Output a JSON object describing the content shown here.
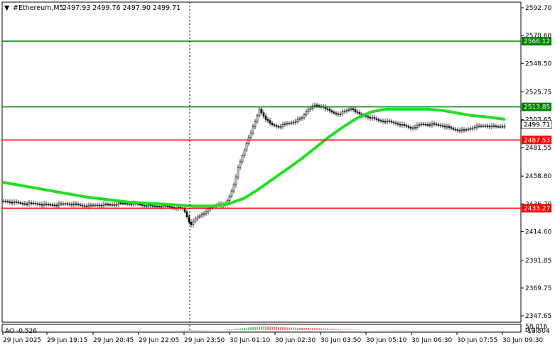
{
  "header": {
    "symbol": "#Ethereum,M5",
    "ohlc": "2497.93 2499.76 2497.90 2499.71"
  },
  "indicator": {
    "label": "AO -0.526",
    "ticks": [
      "58.016",
      "0.00",
      "-13.504"
    ]
  },
  "colors": {
    "ma": "#22dd22",
    "support_line": "#ff0000",
    "resistance_line": "#008000",
    "candle": "#000000",
    "ao_up": "#008000",
    "ao_down": "#cc0000"
  },
  "chart_data": {
    "type": "line",
    "title": "#Ethereum,M5",
    "price_range": [
      2342.6,
      2597.2
    ],
    "y_ticks": [
      "2592.70",
      "2570.60",
      "2548.50",
      "2525.75",
      "2503.65",
      "2481.55",
      "2458.80",
      "2436.70",
      "2414.60",
      "2391.85",
      "2369.75",
      "2347.65"
    ],
    "x_ticks": [
      "29 Jun 2025",
      "29 Jun 19:15",
      "29 Jun 20:45",
      "29 Jun 22:05",
      "29 Jun 23:50",
      "30 Jun 01:10",
      "30 Jun 02:30",
      "30 Jun 03:50",
      "30 Jun 05:10",
      "30 Jun 06:30",
      "30 Jun 07:55",
      "30 Jun 09:30"
    ],
    "levels": [
      {
        "value": 2566.12,
        "label": "2566.12",
        "kind": "resistance"
      },
      {
        "value": 2513.85,
        "label": "2513.85",
        "kind": "resistance"
      },
      {
        "value": 2487.53,
        "label": "2487.53",
        "kind": "support"
      },
      {
        "value": 2433.27,
        "label": "2433.27",
        "kind": "support"
      }
    ],
    "current_price": {
      "value": 2499.71,
      "label": "2499.71"
    },
    "price_series_approx": [
      [
        0,
        2439
      ],
      [
        15,
        2438
      ],
      [
        30,
        2437
      ],
      [
        45,
        2437
      ],
      [
        60,
        2436
      ],
      [
        75,
        2436
      ],
      [
        90,
        2437
      ],
      [
        105,
        2436
      ],
      [
        120,
        2435
      ],
      [
        135,
        2436
      ],
      [
        150,
        2436
      ],
      [
        165,
        2437
      ],
      [
        180,
        2437
      ],
      [
        195,
        2436
      ],
      [
        210,
        2435
      ],
      [
        225,
        2435
      ],
      [
        240,
        2434
      ],
      [
        255,
        2433
      ],
      [
        265,
        2420
      ],
      [
        275,
        2426
      ],
      [
        285,
        2430
      ],
      [
        295,
        2434
      ],
      [
        305,
        2437
      ],
      [
        312,
        2435
      ],
      [
        318,
        2440
      ],
      [
        325,
        2450
      ],
      [
        332,
        2465
      ],
      [
        340,
        2478
      ],
      [
        347,
        2490
      ],
      [
        355,
        2500
      ],
      [
        362,
        2512
      ],
      [
        370,
        2505
      ],
      [
        378,
        2500
      ],
      [
        388,
        2498
      ],
      [
        398,
        2500
      ],
      [
        410,
        2502
      ],
      [
        422,
        2505
      ],
      [
        430,
        2512
      ],
      [
        440,
        2515
      ],
      [
        452,
        2514
      ],
      [
        462,
        2510
      ],
      [
        472,
        2508
      ],
      [
        482,
        2510
      ],
      [
        492,
        2513
      ],
      [
        502,
        2508
      ],
      [
        515,
        2506
      ],
      [
        530,
        2503
      ],
      [
        545,
        2502
      ],
      [
        560,
        2500
      ],
      [
        575,
        2497
      ],
      [
        590,
        2500
      ],
      [
        605,
        2500
      ],
      [
        620,
        2499
      ],
      [
        635,
        2496
      ],
      [
        650,
        2495
      ],
      [
        665,
        2498
      ],
      [
        680,
        2499
      ],
      [
        695,
        2498
      ],
      [
        708,
        2499
      ]
    ],
    "ma_series_approx": [
      [
        0,
        2454
      ],
      [
        30,
        2451
      ],
      [
        60,
        2448
      ],
      [
        90,
        2445
      ],
      [
        120,
        2442
      ],
      [
        150,
        2440
      ],
      [
        180,
        2438
      ],
      [
        210,
        2437
      ],
      [
        240,
        2436
      ],
      [
        270,
        2435
      ],
      [
        300,
        2435
      ],
      [
        320,
        2437
      ],
      [
        340,
        2441
      ],
      [
        360,
        2448
      ],
      [
        380,
        2456
      ],
      [
        400,
        2464
      ],
      [
        420,
        2472
      ],
      [
        440,
        2481
      ],
      [
        460,
        2490
      ],
      [
        480,
        2498
      ],
      [
        500,
        2505
      ],
      [
        520,
        2510
      ],
      [
        540,
        2512
      ],
      [
        560,
        2512
      ],
      [
        580,
        2512
      ],
      [
        600,
        2512
      ],
      [
        620,
        2511
      ],
      [
        640,
        2509
      ],
      [
        660,
        2507
      ],
      [
        680,
        2506
      ],
      [
        708,
        2504
      ]
    ],
    "ao_series_approx": [
      [
        0,
        -5
      ],
      [
        40,
        -3
      ],
      [
        80,
        0
      ],
      [
        120,
        -1
      ],
      [
        160,
        0
      ],
      [
        180,
        4
      ],
      [
        200,
        2
      ],
      [
        220,
        -2
      ],
      [
        240,
        -1
      ],
      [
        255,
        -6
      ],
      [
        270,
        -10
      ],
      [
        285,
        -7
      ],
      [
        300,
        -3
      ],
      [
        315,
        4
      ],
      [
        330,
        18
      ],
      [
        345,
        40
      ],
      [
        360,
        55
      ],
      [
        370,
        58
      ],
      [
        385,
        50
      ],
      [
        400,
        42
      ],
      [
        420,
        36
      ],
      [
        440,
        30
      ],
      [
        460,
        22
      ],
      [
        475,
        8
      ],
      [
        490,
        5
      ],
      [
        505,
        4
      ],
      [
        520,
        0
      ],
      [
        540,
        -3
      ],
      [
        560,
        -6
      ],
      [
        580,
        -4
      ],
      [
        600,
        -2
      ],
      [
        620,
        -3
      ],
      [
        640,
        -4
      ],
      [
        660,
        -2
      ],
      [
        680,
        1
      ],
      [
        695,
        0
      ],
      [
        708,
        -1
      ]
    ]
  }
}
